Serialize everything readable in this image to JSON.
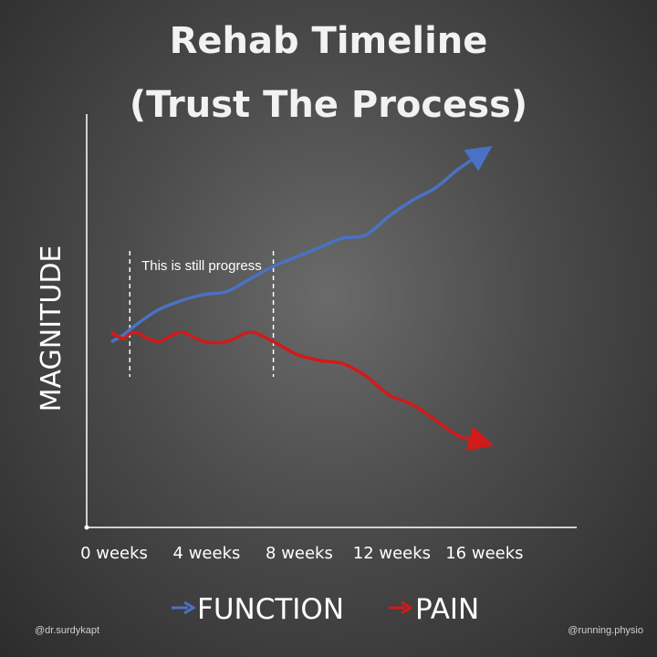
{
  "title_lines": [
    "Rehab Timeline",
    "(Trust The Process)"
  ],
  "annotation": "This is still progress",
  "credits": {
    "left": "@dr.surdykapt",
    "right": "@running.physio"
  },
  "colors": {
    "function": "#4a72c4",
    "pain": "#d11a1a",
    "axis": "#ffffff"
  },
  "chart_data": {
    "type": "line",
    "title": "Rehab Timeline (Trust The Process)",
    "xlabel": "",
    "ylabel": "MAGNITUDE",
    "x_ticks": [
      "0 weeks",
      "4 weeks",
      "8 weeks",
      "12 weeks",
      "16 weeks"
    ],
    "xlim": [
      -3,
      18
    ],
    "ylim": [
      0,
      10
    ],
    "grid": false,
    "legend": "bottom",
    "series": [
      {
        "name": "FUNCTION",
        "color": "#4a72c4",
        "x": [
          0,
          0.5,
          1,
          2,
          3,
          4,
          5,
          6,
          7,
          8,
          9,
          10,
          11,
          12,
          13,
          14,
          15,
          16
        ],
        "y": [
          4.0,
          4.2,
          4.5,
          5.0,
          5.3,
          5.5,
          5.6,
          6.0,
          6.4,
          6.7,
          7.0,
          7.3,
          7.4,
          8.0,
          8.5,
          8.9,
          9.5,
          10.0
        ]
      },
      {
        "name": "PAIN",
        "color": "#d11a1a",
        "x": [
          0,
          0.5,
          1,
          2,
          3,
          4,
          5,
          6,
          7,
          8,
          9,
          10,
          11,
          12,
          13,
          14,
          15,
          16
        ],
        "y": [
          4.3,
          4.1,
          4.3,
          4.0,
          4.3,
          4.0,
          4.0,
          4.3,
          4.0,
          3.6,
          3.4,
          3.3,
          2.9,
          2.3,
          2.0,
          1.5,
          1.0,
          0.8
        ]
      }
    ],
    "annotations": [
      {
        "text": "This is still progress",
        "x_start": 0.8,
        "x_end": 7.0
      }
    ]
  }
}
